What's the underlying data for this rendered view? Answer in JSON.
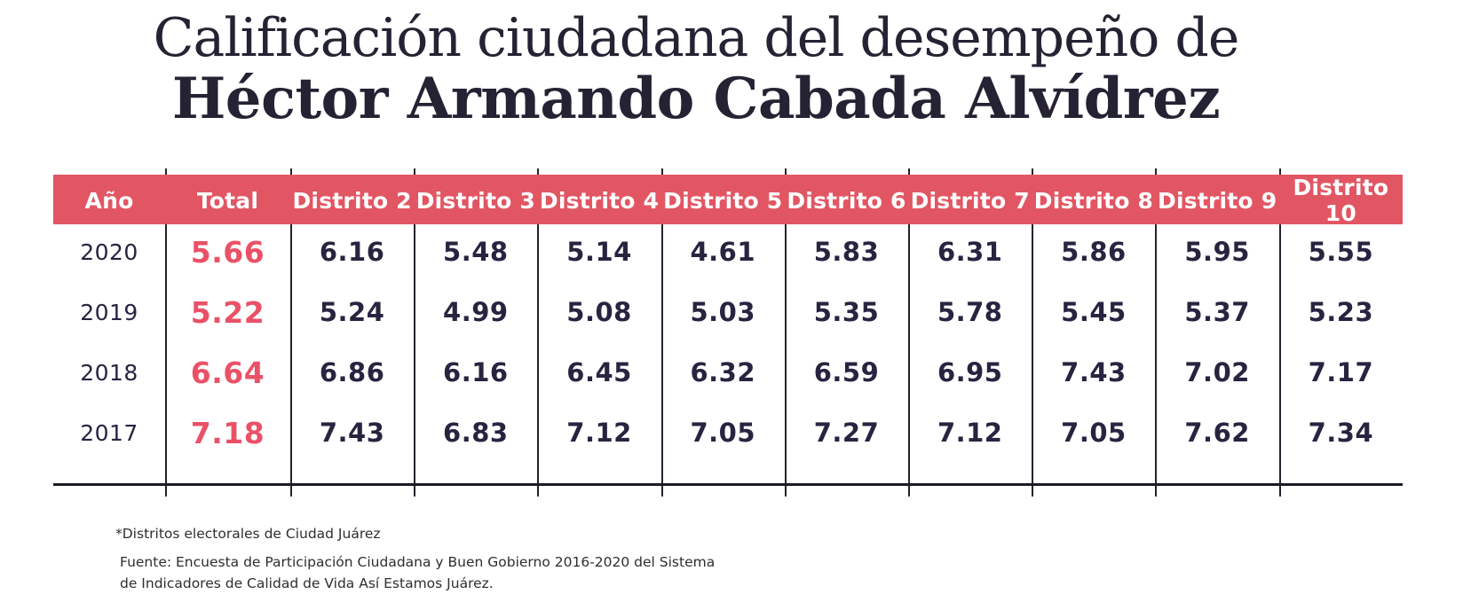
{
  "title": {
    "line1": "Calificación ciudadana del desempeño de",
    "line2": "Héctor Armando Cabada Alvídrez"
  },
  "chart_data": {
    "type": "table",
    "title": "Calificación ciudadana del desempeño de Héctor Armando Cabada Alvídrez",
    "columns": [
      "Año",
      "Total",
      "Distrito 2",
      "Distrito 3",
      "Distrito 4",
      "Distrito 5",
      "Distrito 6",
      "Distrito 7",
      "Distrito 8",
      "Distrito 9",
      "Distrito 10"
    ],
    "rows": [
      [
        "2020",
        "5.66",
        "6.16",
        "5.48",
        "5.14",
        "4.61",
        "5.83",
        "6.31",
        "5.86",
        "5.95",
        "5.55"
      ],
      [
        "2019",
        "5.22",
        "5.24",
        "4.99",
        "5.08",
        "5.03",
        "5.35",
        "5.78",
        "5.45",
        "5.37",
        "5.23"
      ],
      [
        "2018",
        "6.64",
        "6.86",
        "6.16",
        "6.45",
        "6.32",
        "6.59",
        "6.95",
        "7.43",
        "7.02",
        "7.17"
      ],
      [
        "2017",
        "7.18",
        "7.43",
        "6.83",
        "7.12",
        "7.05",
        "7.27",
        "7.12",
        "7.05",
        "7.62",
        "7.34"
      ]
    ],
    "highlight_column": "Total"
  },
  "footnotes": {
    "note": "*Distritos electorales de Ciudad Juárez",
    "source": "Fuente: Encuesta de Participación Ciudadana y Buen Gobierno 2016-2020 del Sistema de Indicadores de Calidad de Vida Así Estamos Juárez."
  },
  "colors": {
    "header_bg": "#E25663",
    "accent_text": "#EA5167",
    "body_text": "#2A2340",
    "title_text": "#262233",
    "line_color": "#23232E",
    "strong_line": "#1B1B24",
    "footnote_text": "#2E2E2E"
  }
}
